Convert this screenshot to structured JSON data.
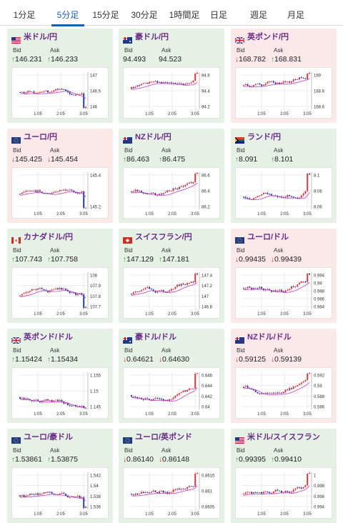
{
  "tabs": [
    "1分足",
    "5分足",
    "15分足",
    "30分足",
    "1時間足",
    "日足",
    "週足",
    "月足"
  ],
  "active_tab": 1,
  "labels": {
    "bid": "Bid",
    "ask": "Ask"
  },
  "colors": {
    "accent": "#1a5fb4",
    "pair_text": "#6b2a8a",
    "up_bg": "#e6f1e6",
    "down_bg": "#fbe8e8",
    "candle_up": "#e8333c",
    "candle_down": "#1f3fa8",
    "ma": "#c23bc2",
    "arrow_up": "#2a9a3a",
    "arrow_down": "#dd2222"
  },
  "cards": [
    {
      "pair": "米ドル/円",
      "flag": "us-flag",
      "trend": "up",
      "bid": "146.231",
      "ask": "146.233",
      "bid_dir": "up",
      "ask_dir": "up",
      "yticks": [
        "147",
        "146.5",
        "146"
      ],
      "xticks": [
        "1:05",
        "2:05",
        "3:05"
      ]
    },
    {
      "pair": "豪ドル/円",
      "flag": "au-flag",
      "trend": "up",
      "bid": "94.493",
      "ask": "94.523",
      "bid_dir": "none",
      "ask_dir": "none",
      "yticks": [
        "94.6",
        "94.4",
        "94.2"
      ],
      "xticks": [
        "1:05",
        "2:05",
        "3:05"
      ]
    },
    {
      "pair": "英ポンド/円",
      "flag": "gb-flag",
      "trend": "down",
      "bid": "168.782",
      "ask": "168.831",
      "bid_dir": "down",
      "ask_dir": "up",
      "yticks": [
        "169",
        "168.8",
        "168.6"
      ],
      "xticks": [
        "1:05",
        "2:05",
        "3:05"
      ]
    },
    {
      "pair": "ユーロ/円",
      "flag": "eu-flag",
      "trend": "down",
      "bid": "145.425",
      "ask": "145.454",
      "bid_dir": "down",
      "ask_dir": "down",
      "yticks": [
        "145.4",
        "145.2"
      ],
      "xticks": [
        "1:05",
        "2:05",
        "3:05"
      ]
    },
    {
      "pair": "NZドル/円",
      "flag": "nz-flag",
      "trend": "up",
      "bid": "86.463",
      "ask": "86.475",
      "bid_dir": "up",
      "ask_dir": "up",
      "yticks": [
        "86.6",
        "86.4",
        "86.2"
      ],
      "xticks": [
        "1:05",
        "2:05",
        "3:05"
      ]
    },
    {
      "pair": "ランド/円",
      "flag": "za-flag",
      "trend": "up",
      "bid": "8.091",
      "ask": "8.101",
      "bid_dir": "up",
      "ask_dir": "up",
      "yticks": [
        "8.1",
        "8.08",
        "8.06"
      ],
      "xticks": [
        "1:05",
        "2:05",
        "3:05"
      ]
    },
    {
      "pair": "カナダドル/円",
      "flag": "ca-flag",
      "trend": "up",
      "bid": "107.743",
      "ask": "107.758",
      "bid_dir": "up",
      "ask_dir": "up",
      "yticks": [
        "108",
        "107.9",
        "107.8",
        "107.7"
      ],
      "xticks": [
        "1:05",
        "2:05",
        "3:05"
      ]
    },
    {
      "pair": "スイスフラン/円",
      "flag": "ch-flag",
      "trend": "up",
      "bid": "147.129",
      "ask": "147.181",
      "bid_dir": "up",
      "ask_dir": "up",
      "yticks": [
        "147.4",
        "147.2",
        "147",
        "146.8"
      ],
      "xticks": [
        "1:05",
        "2:05",
        "3:05"
      ]
    },
    {
      "pair": "ユーロ/ドル",
      "flag": "eu-flag",
      "trend": "down",
      "bid": "0.99435",
      "ask": "0.99439",
      "bid_dir": "down",
      "ask_dir": "down",
      "yticks": [
        "0.994",
        "0.99",
        "0.988",
        "0.986",
        "0.984"
      ],
      "xticks": [
        "1:05",
        "2:05",
        "3:05"
      ]
    },
    {
      "pair": "英ポンド/ドル",
      "flag": "gb-flag",
      "trend": "up",
      "bid": "1.15424",
      "ask": "1.15434",
      "bid_dir": "up",
      "ask_dir": "up",
      "yticks": [
        "1.155",
        "1.15",
        "1.145"
      ],
      "xticks": [
        "1:05",
        "2:05",
        "3:05"
      ]
    },
    {
      "pair": "豪ドル/ドル",
      "flag": "au-flag",
      "trend": "up",
      "bid": "0.64621",
      "ask": "0.64630",
      "bid_dir": "down",
      "ask_dir": "down",
      "yticks": [
        "0.646",
        "0.644",
        "0.642",
        "0.64"
      ],
      "xticks": [
        "1:05",
        "2:05",
        "3:05"
      ]
    },
    {
      "pair": "NZドル/ドル",
      "flag": "nz-flag",
      "trend": "down",
      "bid": "0.59125",
      "ask": "0.59139",
      "bid_dir": "down",
      "ask_dir": "down",
      "yticks": [
        "0.592",
        "0.59",
        "0.588",
        "0.586"
      ],
      "xticks": [
        "1:05",
        "2:05",
        "3:05"
      ]
    },
    {
      "pair": "ユーロ/豪ドル",
      "flag": "eu-flag",
      "trend": "up",
      "bid": "1.53861",
      "ask": "1.53875",
      "bid_dir": "up",
      "ask_dir": "up",
      "yticks": [
        "1.542",
        "1.54",
        "1.538",
        "1.536"
      ],
      "xticks": [
        "1:05",
        "2:05",
        "3:05"
      ]
    },
    {
      "pair": "ユーロ/英ポンド",
      "flag": "eu-flag",
      "trend": "up",
      "bid": "0.86140",
      "ask": "0.86148",
      "bid_dir": "down",
      "ask_dir": "down",
      "yticks": [
        "0.8615",
        "0.861",
        "0.8605"
      ],
      "xticks": [
        "1:05",
        "2:05",
        "3:05"
      ]
    },
    {
      "pair": "米ドル/スイスフラン",
      "flag": "us-flag",
      "trend": "up",
      "bid": "0.99395",
      "ask": "0.99410",
      "bid_dir": "up",
      "ask_dir": "up",
      "yticks": [
        "1",
        "0.998",
        "0.996",
        "0.994"
      ],
      "xticks": [
        "1:05",
        "2:05",
        "3:05"
      ]
    }
  ]
}
